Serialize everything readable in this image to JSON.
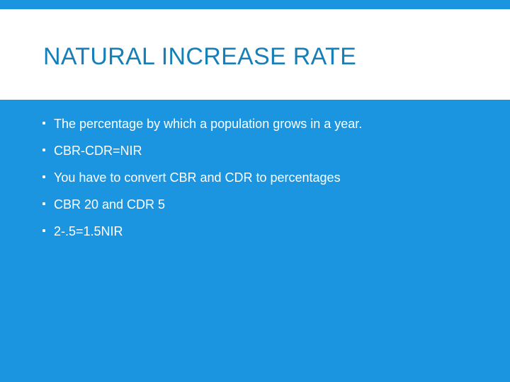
{
  "slide": {
    "title": "NATURAL INCREASE RATE",
    "bullets": [
      "The percentage by which a population grows in a year.",
      "CBR-CDR=NIR",
      "You have to convert CBR and CDR to percentages",
      "CBR 20 and CDR 5",
      "2-.5=1.5NIR"
    ]
  },
  "colors": {
    "background": "#1b95df",
    "title_band": "#ffffff",
    "title_text": "#177fb8",
    "body_text": "#ffffff"
  }
}
